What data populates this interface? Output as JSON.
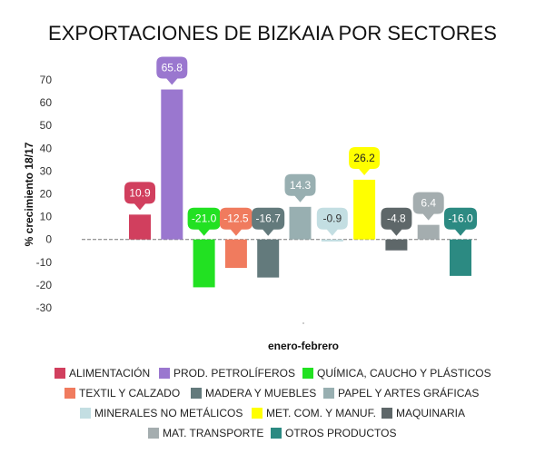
{
  "chart_data": {
    "type": "bar",
    "title": "EXPORTACIONES DE BIZKAIA POR SECTORES",
    "xlabel": "enero-febrero",
    "ylabel": "% crecimiento 18/17",
    "ylim": [
      -30,
      70
    ],
    "yticks": [
      70,
      60,
      50,
      40,
      30,
      20,
      10,
      0,
      -10,
      -20,
      -30
    ],
    "categories": [
      "enero-febrero"
    ],
    "grid": false,
    "legend_position": "bottom",
    "series": [
      {
        "name": "ALIMENTACIÓN",
        "value": 10.9,
        "label": "10.9",
        "color": "#d13f5e",
        "label_color": "#ffffff"
      },
      {
        "name": "PROD. PETROLÍFEROS",
        "value": 65.8,
        "label": "65.8",
        "color": "#9a77cf",
        "label_color": "#ffffff"
      },
      {
        "name": "QUÍMICA, CAUCHO Y PLÁSTICOS",
        "value": -21.0,
        "label": "-21.0",
        "color": "#22e122",
        "label_color": "#ffffff"
      },
      {
        "name": "TEXTIL Y CALZADO",
        "value": -12.5,
        "label": "-12.5",
        "color": "#f07b5e",
        "label_color": "#ffffff"
      },
      {
        "name": "MADERA Y MUEBLES",
        "value": -16.7,
        "label": "-16.7",
        "color": "#637a7c",
        "label_color": "#ffffff"
      },
      {
        "name": "PAPEL Y ARTES GRÁFICAS",
        "value": 14.3,
        "label": "14.3",
        "color": "#98afb1",
        "label_color": "#ffffff"
      },
      {
        "name": "MINERALES NO METÁLICOS",
        "value": -0.9,
        "label": "-0.9",
        "color": "#c3dee2",
        "label_color": "#333333"
      },
      {
        "name": "MET. COM. Y MANUF.",
        "value": 26.2,
        "label": "26.2",
        "color": "#ffff00",
        "label_color": "#222222"
      },
      {
        "name": "MAQUINARIA",
        "value": -4.8,
        "label": "-4.8",
        "color": "#5e6769",
        "label_color": "#ffffff"
      },
      {
        "name": "MAT. TRANSPORTE",
        "value": 6.4,
        "label": "6.4",
        "color": "#a4adaf",
        "label_color": "#ffffff"
      },
      {
        "name": "OTROS PRODUCTOS",
        "value": -16.0,
        "label": "-16.0",
        "color": "#2c8a82",
        "label_color": "#ffffff"
      }
    ]
  }
}
